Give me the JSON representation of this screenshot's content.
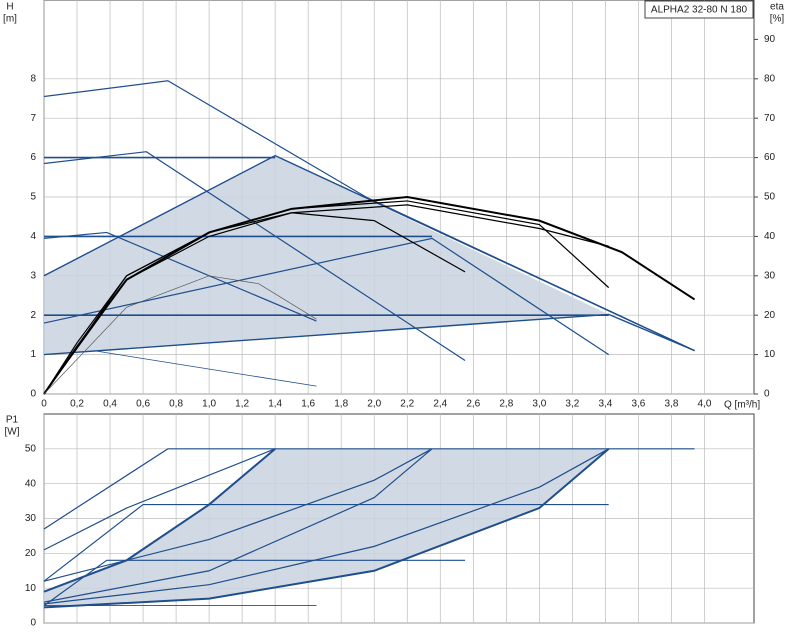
{
  "chart_data": [
    {
      "type": "line",
      "title": "ALPHA2 32-80 N 180",
      "ylabel": "H",
      "yunit": "[m]",
      "y2label": "eta",
      "y2unit": "[%]",
      "xlabel": "Q [m³/h]",
      "xlim": [
        0,
        4.3
      ],
      "ylim": [
        0,
        10
      ],
      "y2lim": [
        0,
        100
      ],
      "grid": true,
      "xticks": [
        0,
        {
          "value": 0.2,
          "label": "0,2"
        },
        {
          "value": 0.4,
          "label": "0,4"
        },
        {
          "value": 0.6,
          "label": "0,6"
        },
        {
          "value": 0.8,
          "label": "0,8"
        },
        {
          "value": 1.0,
          "label": "1,0"
        },
        {
          "value": 1.2,
          "label": "1,2"
        },
        {
          "value": 1.4,
          "label": "1,4"
        },
        {
          "value": 1.6,
          "label": "1,6"
        },
        {
          "value": 1.8,
          "label": "1,8"
        },
        {
          "value": 2.0,
          "label": "2,0"
        },
        {
          "value": 2.2,
          "label": "2,2"
        },
        {
          "value": 2.4,
          "label": "2,4"
        },
        {
          "value": 2.6,
          "label": "2,6"
        },
        {
          "value": 2.8,
          "label": "2,8"
        },
        {
          "value": 3.0,
          "label": "3,0"
        },
        {
          "value": 3.2,
          "label": "3,2"
        },
        {
          "value": 3.4,
          "label": "3,4"
        },
        {
          "value": 3.6,
          "label": "3,6"
        },
        {
          "value": 3.8,
          "label": "3,8"
        },
        {
          "value": 4.0,
          "label": "4,0"
        }
      ],
      "yticks": [
        0,
        1,
        2,
        3,
        4,
        5,
        6,
        7,
        8
      ],
      "y2ticks": [
        0,
        10,
        20,
        30,
        40,
        50,
        60,
        70,
        80,
        90
      ],
      "regions": [
        {
          "color": "#c9d3df",
          "x": [
            0,
            0,
            1.4,
            3.42,
            0
          ],
          "values": [
            1,
            3,
            6.05,
            2.02,
            1
          ]
        }
      ],
      "series": [
        {
          "color": "#1f4e8c",
          "width": 1.2,
          "x": [
            0,
            0.75,
            1.95,
            3.94
          ],
          "values": [
            7.55,
            7.95,
            5.0,
            1.1
          ]
        },
        {
          "color": "#1f4e8c",
          "width": 1.2,
          "x": [
            0,
            0.62,
            2.55
          ],
          "values": [
            5.85,
            6.15,
            0.85
          ]
        },
        {
          "color": "#1f4e8c",
          "width": 1.2,
          "x": [
            0,
            0.38,
            1.65
          ],
          "values": [
            3.95,
            4.1,
            1.85
          ]
        },
        {
          "color": "#1f4e8c",
          "width": 0.8,
          "x": [
            0.3,
            1.65
          ],
          "values": [
            1.1,
            0.2
          ]
        },
        {
          "color": "#1f4e8c",
          "width": 1.6,
          "x": [
            0,
            1.4
          ],
          "values": [
            6,
            6
          ]
        },
        {
          "color": "#1f4e8c",
          "width": 1.6,
          "x": [
            0,
            2.35
          ],
          "values": [
            4,
            4
          ]
        },
        {
          "color": "#1f4e8c",
          "width": 1.6,
          "x": [
            0,
            3.42
          ],
          "values": [
            2,
            2
          ]
        },
        {
          "color": "#1f4e8c",
          "width": 1.4,
          "x": [
            0,
            1.4,
            3.94
          ],
          "values": [
            3,
            6.05,
            1.1
          ]
        },
        {
          "color": "#1f4e8c",
          "width": 1.2,
          "x": [
            0,
            2.35,
            3.42
          ],
          "values": [
            1.8,
            3.95,
            1.0
          ]
        },
        {
          "color": "#1f4e8c",
          "width": 1.4,
          "x": [
            0,
            3.42,
            3.94
          ],
          "values": [
            1,
            2.02,
            1.1
          ]
        },
        {
          "color": "#000000",
          "width": 2,
          "axis": "y2",
          "x": [
            0,
            0.2,
            0.5,
            1,
            1.5,
            2.2,
            3,
            3.5,
            3.94
          ],
          "values": [
            0,
            12,
            29,
            41,
            47,
            50,
            44,
            36,
            24
          ]
        },
        {
          "color": "#000000",
          "width": 1.2,
          "axis": "y2",
          "x": [
            0,
            0.2,
            0.5,
            1,
            1.5,
            2,
            2.55
          ],
          "values": [
            0,
            13,
            30,
            41,
            46,
            44,
            31
          ]
        },
        {
          "color": "#000000",
          "width": 1.2,
          "axis": "y2",
          "x": [
            0,
            0.5,
            1,
            1.5,
            2.2,
            3,
            3.42
          ],
          "values": [
            0,
            30,
            41,
            47,
            49,
            43,
            27
          ]
        },
        {
          "color": "#000000",
          "width": 1.2,
          "axis": "y2",
          "x": [
            0,
            0.5,
            1,
            1.5,
            2.2,
            3,
            3.42
          ],
          "values": [
            0,
            29,
            40,
            46,
            48,
            42,
            37.5
          ]
        },
        {
          "color": "#555555",
          "width": 0.7,
          "axis": "y2",
          "x": [
            0,
            0.5,
            1,
            1.3,
            1.65
          ],
          "values": [
            0,
            22,
            30,
            28,
            19
          ]
        }
      ]
    },
    {
      "type": "line",
      "ylabel": "P1",
      "yunit": "[W]",
      "xlim": [
        0,
        4.3
      ],
      "ylim": [
        0,
        60
      ],
      "grid": true,
      "yticks": [
        0,
        10,
        20,
        30,
        40,
        50
      ],
      "regions": [
        {
          "color": "#c9d3df",
          "x": [
            0,
            0.5,
            1,
            1.4,
            3.42,
            3,
            2,
            1,
            0
          ],
          "values": [
            9,
            18,
            34,
            50,
            50,
            33,
            15,
            7,
            4.5
          ]
        }
      ],
      "series": [
        {
          "color": "#1f4e8c",
          "width": 1.2,
          "x": [
            0,
            0.75,
            3.94
          ],
          "values": [
            27,
            50,
            50
          ]
        },
        {
          "color": "#1f4e8c",
          "width": 1.2,
          "x": [
            0,
            0.5,
            1.4
          ],
          "values": [
            21,
            33,
            50
          ]
        },
        {
          "color": "#1f4e8c",
          "width": 1.2,
          "x": [
            0,
            0.6,
            3.42
          ],
          "values": [
            12,
            34,
            34
          ]
        },
        {
          "color": "#1f4e8c",
          "width": 1.2,
          "x": [
            0,
            0.38,
            2.55
          ],
          "values": [
            5,
            18,
            18
          ]
        },
        {
          "color": "#1f4e8c",
          "width": 0.8,
          "x": [
            0,
            1.65
          ],
          "values": [
            5,
            5
          ]
        },
        {
          "color": "#1f4e8c",
          "width": 2,
          "x": [
            0,
            0.5,
            1,
            1.4
          ],
          "values": [
            9,
            18,
            34,
            50
          ]
        },
        {
          "color": "#1f4e8c",
          "width": 1.2,
          "x": [
            0,
            1,
            2,
            2.35
          ],
          "values": [
            6,
            15,
            36,
            50
          ]
        },
        {
          "color": "#1f4e8c",
          "width": 1.2,
          "x": [
            0,
            1,
            2,
            2.35
          ],
          "values": [
            12,
            24,
            41,
            50
          ]
        },
        {
          "color": "#1f4e8c",
          "width": 2,
          "x": [
            0,
            1,
            2,
            3,
            3.42
          ],
          "values": [
            4.5,
            7,
            15,
            33,
            50
          ]
        },
        {
          "color": "#1f4e8c",
          "width": 1.2,
          "x": [
            0,
            1,
            2,
            3,
            3.42
          ],
          "values": [
            5.5,
            11,
            22,
            39,
            50
          ]
        }
      ]
    }
  ]
}
